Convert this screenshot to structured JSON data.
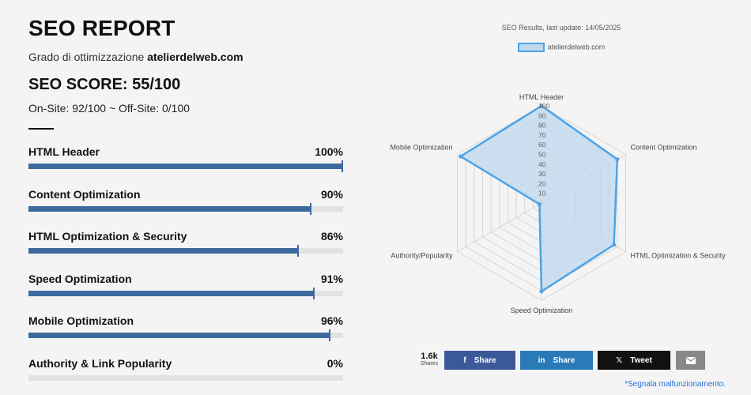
{
  "report": {
    "title": "SEO REPORT",
    "subtitle_prefix": "Grado di ottimizzazione ",
    "site": "atelierdelweb.com",
    "score": "SEO SCORE: 55/100",
    "onoff": "On-Site: 92/100 ~ Off-Site: 0/100"
  },
  "metrics": [
    {
      "label": "HTML Header",
      "value_text": "100%",
      "value": 100
    },
    {
      "label": "Content Optimization",
      "value_text": "90%",
      "value": 90
    },
    {
      "label": "HTML Optimization & Security",
      "value_text": "86%",
      "value": 86
    },
    {
      "label": "Speed Optimization",
      "value_text": "91%",
      "value": 91
    },
    {
      "label": "Mobile Optimization",
      "value_text": "96%",
      "value": 96
    },
    {
      "label": "Authority & Link Popularity",
      "value_text": "0%",
      "value": 0
    }
  ],
  "chart_data": {
    "type": "radar",
    "title": "SEO Results, last update: 14/05/2025",
    "legend": "atelierdelweb.com",
    "categories": [
      "HTML Header",
      "Content Optimization",
      "HTML Optimization & Security",
      "Speed Optimization",
      "Authority/Popularity",
      "Mobile Optimization"
    ],
    "series": [
      {
        "name": "atelierdelweb.com",
        "values": [
          100,
          90,
          86,
          91,
          0,
          96
        ]
      }
    ],
    "ticks": [
      "10",
      "20",
      "30",
      "40",
      "50",
      "60",
      "70",
      "80",
      "90",
      "100"
    ],
    "rlim": [
      0,
      100
    ],
    "colors": {
      "line": "#4da3e6",
      "fill": "#bed8f0"
    }
  },
  "share": {
    "count": "1.6k",
    "count_label": "Shares",
    "facebook_label": "Share",
    "linkedin_label": "Share",
    "twitter_label": "Tweet",
    "facebook_icon": "f",
    "linkedin_icon": "in",
    "twitter_icon": "𝕏",
    "email_icon": "envelope-icon"
  },
  "report_link": "*Segnala malfunzionamento."
}
